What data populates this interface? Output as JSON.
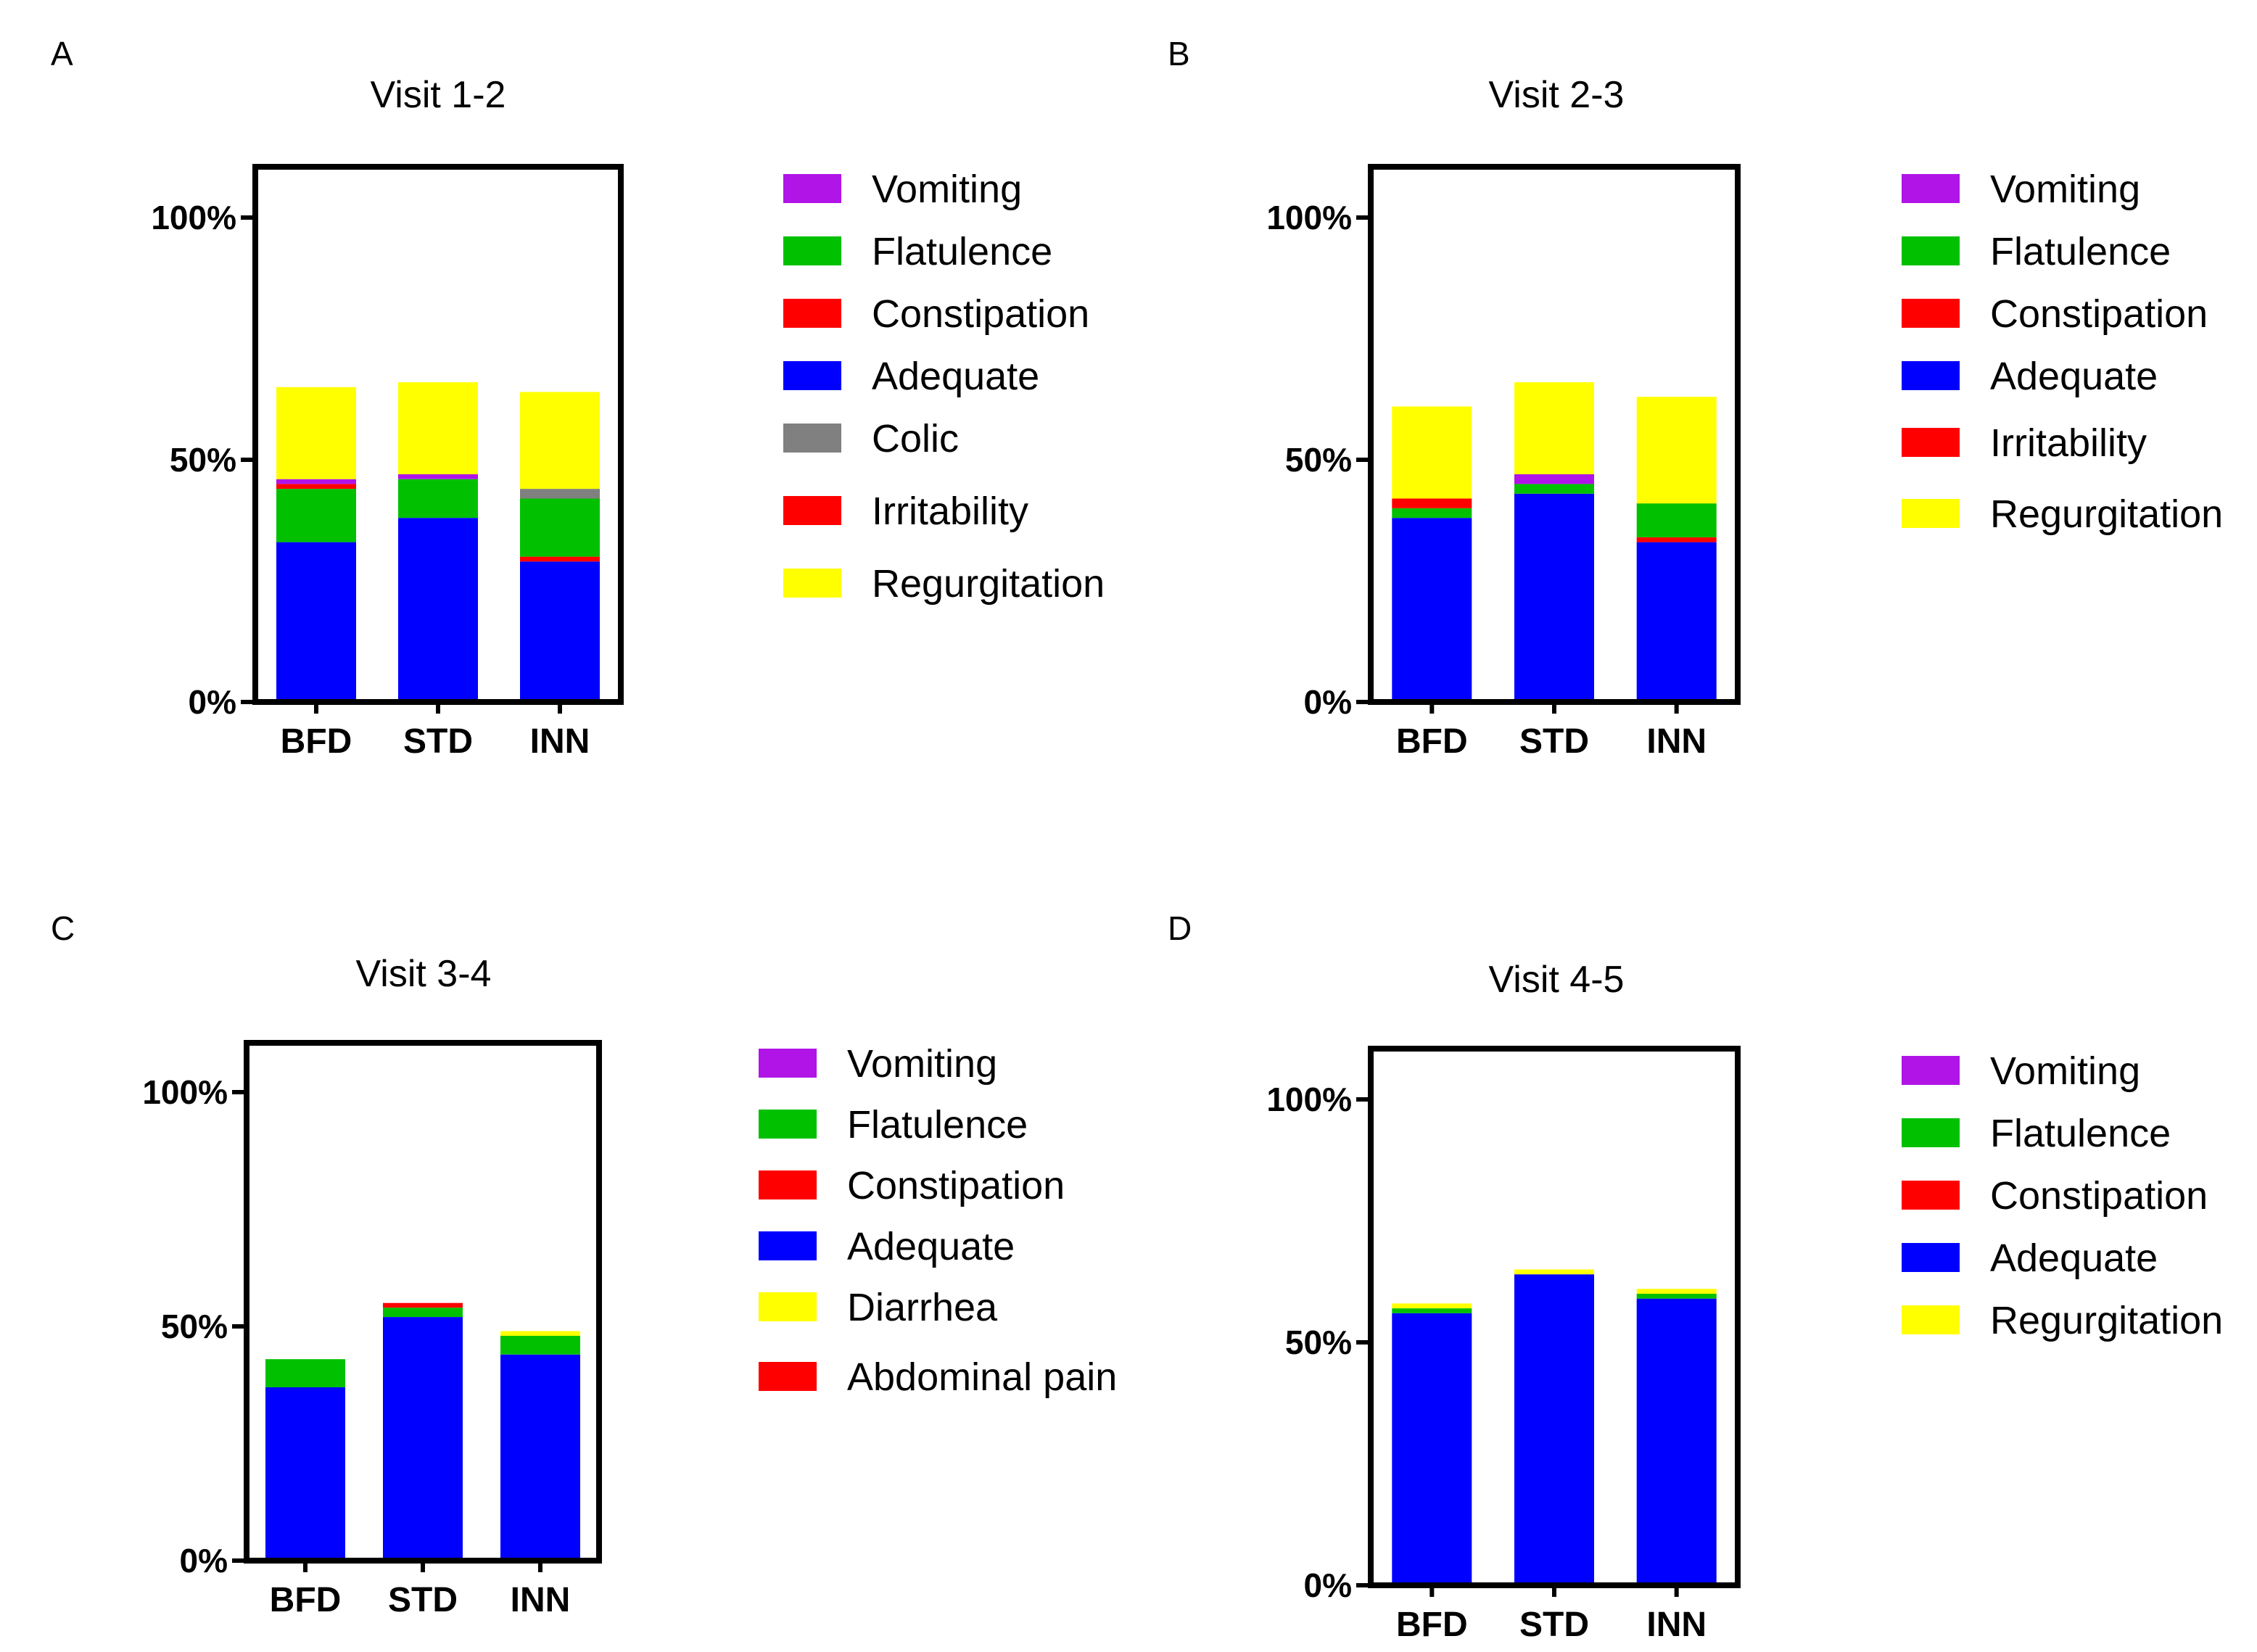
{
  "colors": {
    "Vomiting": "#b014e6",
    "Flatulence": "#00c000",
    "Constipation": "#ff0000",
    "Adequate": "#0000ff",
    "Colic": "#808080",
    "Irritability": "#ff0000",
    "Regurgitation": "#ffff00",
    "Diarrhea": "#ffff00",
    "Abdominal pain": "#ff0000"
  },
  "chart_data": [
    {
      "type": "bar",
      "stacked": true,
      "panel": "A",
      "title": "Visit 1-2",
      "categories": [
        "BFD",
        "STD",
        "INN"
      ],
      "yticks": [
        "0%",
        "50%",
        "100%"
      ],
      "ylim": [
        0,
        110
      ],
      "legend": [
        "Vomiting",
        "Flatulence",
        "Constipation",
        "Adequate",
        "Colic",
        "Irritability",
        "Regurgitation"
      ],
      "series": [
        {
          "name": "Adequate",
          "values": [
            33,
            38,
            29
          ]
        },
        {
          "name": "Constipation",
          "values": [
            0,
            0,
            1
          ]
        },
        {
          "name": "Flatulence",
          "values": [
            11,
            8,
            12
          ]
        },
        {
          "name": "Colic",
          "values": [
            0,
            0,
            2
          ]
        },
        {
          "name": "Irritability",
          "values": [
            1,
            0,
            0
          ]
        },
        {
          "name": "Vomiting",
          "values": [
            1,
            1,
            0
          ]
        },
        {
          "name": "Regurgitation",
          "values": [
            19,
            19,
            20
          ]
        }
      ]
    },
    {
      "type": "bar",
      "stacked": true,
      "panel": "B",
      "title": "Visit 2-3",
      "categories": [
        "BFD",
        "STD",
        "INN"
      ],
      "yticks": [
        "0%",
        "50%",
        "100%"
      ],
      "ylim": [
        0,
        110
      ],
      "legend": [
        "Vomiting",
        "Flatulence",
        "Constipation",
        "Adequate",
        "Irritability",
        "Regurgitation"
      ],
      "series": [
        {
          "name": "Adequate",
          "values": [
            38,
            43,
            33
          ]
        },
        {
          "name": "Constipation",
          "values": [
            0,
            0,
            1
          ]
        },
        {
          "name": "Flatulence",
          "values": [
            2,
            2,
            7
          ]
        },
        {
          "name": "Irritability",
          "values": [
            2,
            0,
            0
          ]
        },
        {
          "name": "Vomiting",
          "values": [
            0,
            2,
            0
          ]
        },
        {
          "name": "Regurgitation",
          "values": [
            19,
            19,
            22
          ]
        }
      ]
    },
    {
      "type": "bar",
      "stacked": true,
      "panel": "C",
      "title": "Visit 3-4",
      "categories": [
        "BFD",
        "STD",
        "INN"
      ],
      "yticks": [
        "0%",
        "50%",
        "100%"
      ],
      "ylim": [
        0,
        110
      ],
      "legend": [
        "Vomiting",
        "Flatulence",
        "Constipation",
        "Adequate",
        "Diarrhea",
        "Abdominal pain"
      ],
      "series": [
        {
          "name": "Adequate",
          "values": [
            37,
            52,
            44
          ]
        },
        {
          "name": "Flatulence",
          "values": [
            6,
            2,
            4
          ]
        },
        {
          "name": "Abdominal pain",
          "values": [
            0,
            1,
            0
          ]
        },
        {
          "name": "Diarrhea",
          "values": [
            0,
            0,
            1
          ]
        }
      ]
    },
    {
      "type": "bar",
      "stacked": true,
      "panel": "D",
      "title": "Visit 4-5",
      "categories": [
        "BFD",
        "STD",
        "INN"
      ],
      "yticks": [
        "0%",
        "50%",
        "100%"
      ],
      "ylim": [
        0,
        110
      ],
      "legend": [
        "Vomiting",
        "Flatulence",
        "Constipation",
        "Adequate",
        "Regurgitation"
      ],
      "series": [
        {
          "name": "Adequate",
          "values": [
            56,
            64,
            59
          ]
        },
        {
          "name": "Flatulence",
          "values": [
            1,
            0,
            1
          ]
        },
        {
          "name": "Regurgitation",
          "values": [
            1,
            1,
            1
          ]
        }
      ]
    }
  ]
}
